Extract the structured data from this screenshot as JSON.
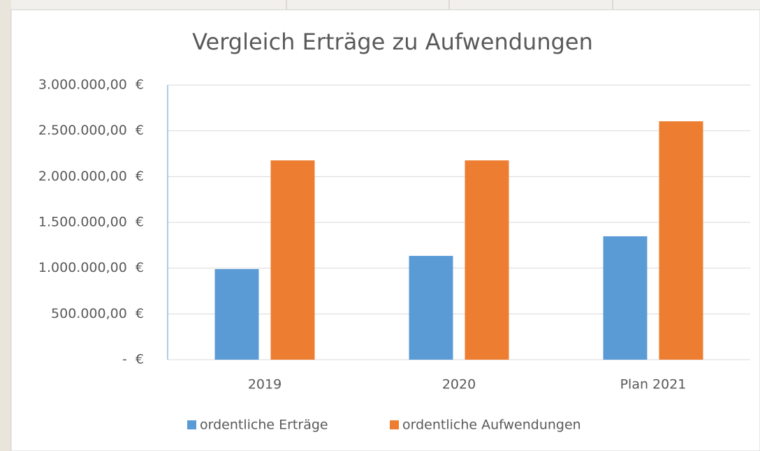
{
  "chart_data": {
    "type": "bar",
    "title": "Vergleich Erträge zu Aufwendungen",
    "categories": [
      "2019",
      "2020",
      "Plan 2021"
    ],
    "series": [
      {
        "name": "ordentliche Erträge",
        "color": "#5b9bd5",
        "values": [
          990000,
          1134000,
          1348000
        ]
      },
      {
        "name": "ordentliche Aufwendungen",
        "color": "#ed7d31",
        "values": [
          2177000,
          2177000,
          2604000
        ]
      }
    ],
    "ylim": [
      0,
      3000000
    ],
    "yticks": [
      {
        "value": 0,
        "label": "-  €"
      },
      {
        "value": 500000,
        "label": "500.000,00  €"
      },
      {
        "value": 1000000,
        "label": "1.000.000,00  €"
      },
      {
        "value": 1500000,
        "label": "1.500.000,00  €"
      },
      {
        "value": 2000000,
        "label": "2.000.000,00  €"
      },
      {
        "value": 2500000,
        "label": "2.500.000,00  €"
      },
      {
        "value": 3000000,
        "label": "3.000.000,00  €"
      }
    ],
    "grid": true,
    "legend": "bottom"
  }
}
